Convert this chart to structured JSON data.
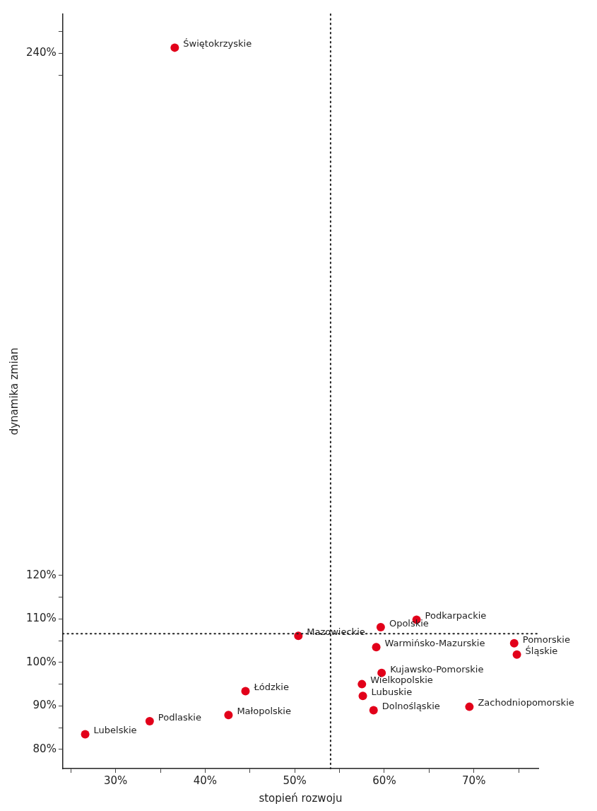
{
  "chart_data": {
    "type": "scatter",
    "xlabel": "stopień rozwoju",
    "ylabel": "dynamika zmian",
    "x": [
      36.6,
      50.4,
      59.6,
      63.6,
      59.1,
      74.5,
      74.8,
      59.7,
      57.5,
      57.6,
      58.8,
      69.5,
      44.5,
      42.6,
      33.8,
      26.6
    ],
    "series": [
      {
        "color": "#e2001a",
        "values": [
          241.3,
          106.1,
          108.1,
          109.8,
          103.5,
          104.4,
          101.8,
          97.6,
          95.0,
          92.3,
          89.0,
          89.8,
          93.4,
          87.9,
          86.5,
          83.5
        ]
      }
    ],
    "marker": "circle",
    "grid": false,
    "legend": false,
    "xlim": [
      24.1,
      77.2
    ],
    "ylim": [
      75.6,
      249
    ],
    "xticks": [
      {
        "value": 25,
        "label": null
      },
      {
        "value": 30,
        "label": "30%"
      },
      {
        "value": 35,
        "label": null
      },
      {
        "value": 40,
        "label": "40%"
      },
      {
        "value": 45,
        "label": null
      },
      {
        "value": 50,
        "label": "50%"
      },
      {
        "value": 55,
        "label": null
      },
      {
        "value": 60,
        "label": "60%"
      },
      {
        "value": 65,
        "label": null
      },
      {
        "value": 70,
        "label": "70%"
      },
      {
        "value": 75,
        "label": null
      }
    ],
    "yticks": [
      {
        "value": 80,
        "label": "80%"
      },
      {
        "value": 85,
        "label": null
      },
      {
        "value": 90,
        "label": "90%"
      },
      {
        "value": 95,
        "label": null
      },
      {
        "value": 100,
        "label": "100%"
      },
      {
        "value": 105,
        "label": null
      },
      {
        "value": 110,
        "label": "110%"
      },
      {
        "value": 115,
        "label": null
      },
      {
        "value": 120,
        "label": "120%"
      },
      {
        "value": 235,
        "label": null
      },
      {
        "value": 240,
        "label": "240%"
      },
      {
        "value": 245,
        "label": null
      }
    ],
    "ref_lines": [
      {
        "axis": "x",
        "value": 54.0,
        "line_style": "dotted"
      },
      {
        "axis": "y",
        "value": 106.6,
        "line_style": "dotted"
      }
    ],
    "annotations": [
      {
        "text": "Świętokrzyskie",
        "x": 36.6,
        "y": 241.3
      },
      {
        "text": "Mazowieckie",
        "x": 50.4,
        "y": 106.1
      },
      {
        "text": "Opolskie",
        "x": 59.6,
        "y": 108.1
      },
      {
        "text": "Podkarpackie",
        "x": 63.6,
        "y": 109.8
      },
      {
        "text": "Warmińsko-Mazurskie",
        "x": 59.1,
        "y": 103.5
      },
      {
        "text": "Pomorskie",
        "x": 74.5,
        "y": 104.4
      },
      {
        "text": "Śląskie",
        "x": 74.8,
        "y": 101.8
      },
      {
        "text": "Kujawsko-Pomorskie",
        "x": 59.7,
        "y": 97.6
      },
      {
        "text": "Wielkopolskie",
        "x": 57.5,
        "y": 95.0
      },
      {
        "text": "Lubuskie",
        "x": 57.6,
        "y": 92.3
      },
      {
        "text": "Dolnośląskie",
        "x": 58.8,
        "y": 89.0
      },
      {
        "text": "Zachodniopomorskie",
        "x": 69.5,
        "y": 89.8
      },
      {
        "text": "Łódzkie",
        "x": 44.5,
        "y": 93.4
      },
      {
        "text": "Małopolskie",
        "x": 42.6,
        "y": 87.9
      },
      {
        "text": "Podlaskie",
        "x": 33.8,
        "y": 86.5
      },
      {
        "text": "Lubelskie",
        "x": 26.6,
        "y": 83.5
      }
    ]
  }
}
